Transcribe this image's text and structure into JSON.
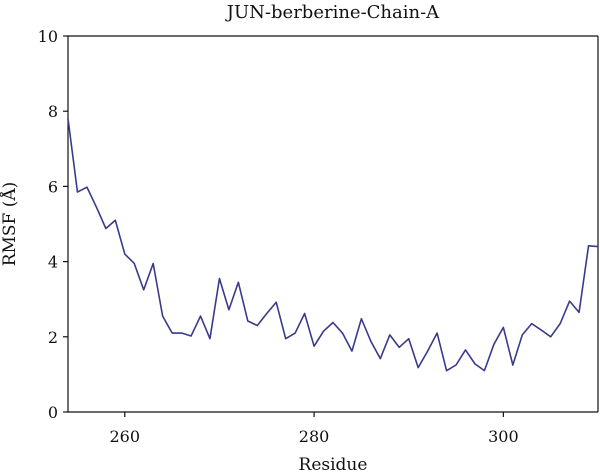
{
  "chart_data": {
    "type": "line",
    "title": "JUN-berberine-Chain-A",
    "xlabel": "Residue",
    "ylabel": "RMSF (Å)",
    "xlim": [
      254,
      310
    ],
    "ylim": [
      0,
      10
    ],
    "xticks": [
      260,
      280,
      300
    ],
    "yticks": [
      0,
      2,
      4,
      6,
      8,
      10
    ],
    "grid": false,
    "series": [
      {
        "color": "#3a3a8c",
        "x": [
          254,
          255,
          256,
          257,
          258,
          259,
          260,
          261,
          262,
          263,
          264,
          265,
          266,
          267,
          268,
          269,
          270,
          271,
          272,
          273,
          274,
          275,
          276,
          277,
          278,
          279,
          280,
          281,
          282,
          283,
          284,
          285,
          286,
          287,
          288,
          289,
          290,
          291,
          292,
          293,
          294,
          295,
          296,
          297,
          298,
          299,
          300,
          301,
          302,
          303,
          304,
          305,
          306,
          307,
          308,
          309,
          310
        ],
        "y": [
          7.8,
          5.85,
          5.98,
          5.45,
          4.88,
          5.1,
          4.2,
          3.95,
          3.25,
          3.95,
          2.55,
          2.1,
          2.1,
          2.02,
          2.55,
          1.95,
          3.55,
          2.72,
          3.45,
          2.42,
          2.3,
          2.62,
          2.92,
          1.95,
          2.1,
          2.62,
          1.75,
          2.15,
          2.38,
          2.1,
          1.62,
          2.48,
          1.88,
          1.42,
          2.05,
          1.72,
          1.95,
          1.18,
          1.62,
          2.1,
          1.1,
          1.25,
          1.65,
          1.28,
          1.1,
          1.8,
          2.25,
          1.25,
          2.05,
          2.35,
          2.18,
          2.0,
          2.35,
          2.95,
          2.65,
          4.42,
          4.4
        ]
      }
    ]
  }
}
